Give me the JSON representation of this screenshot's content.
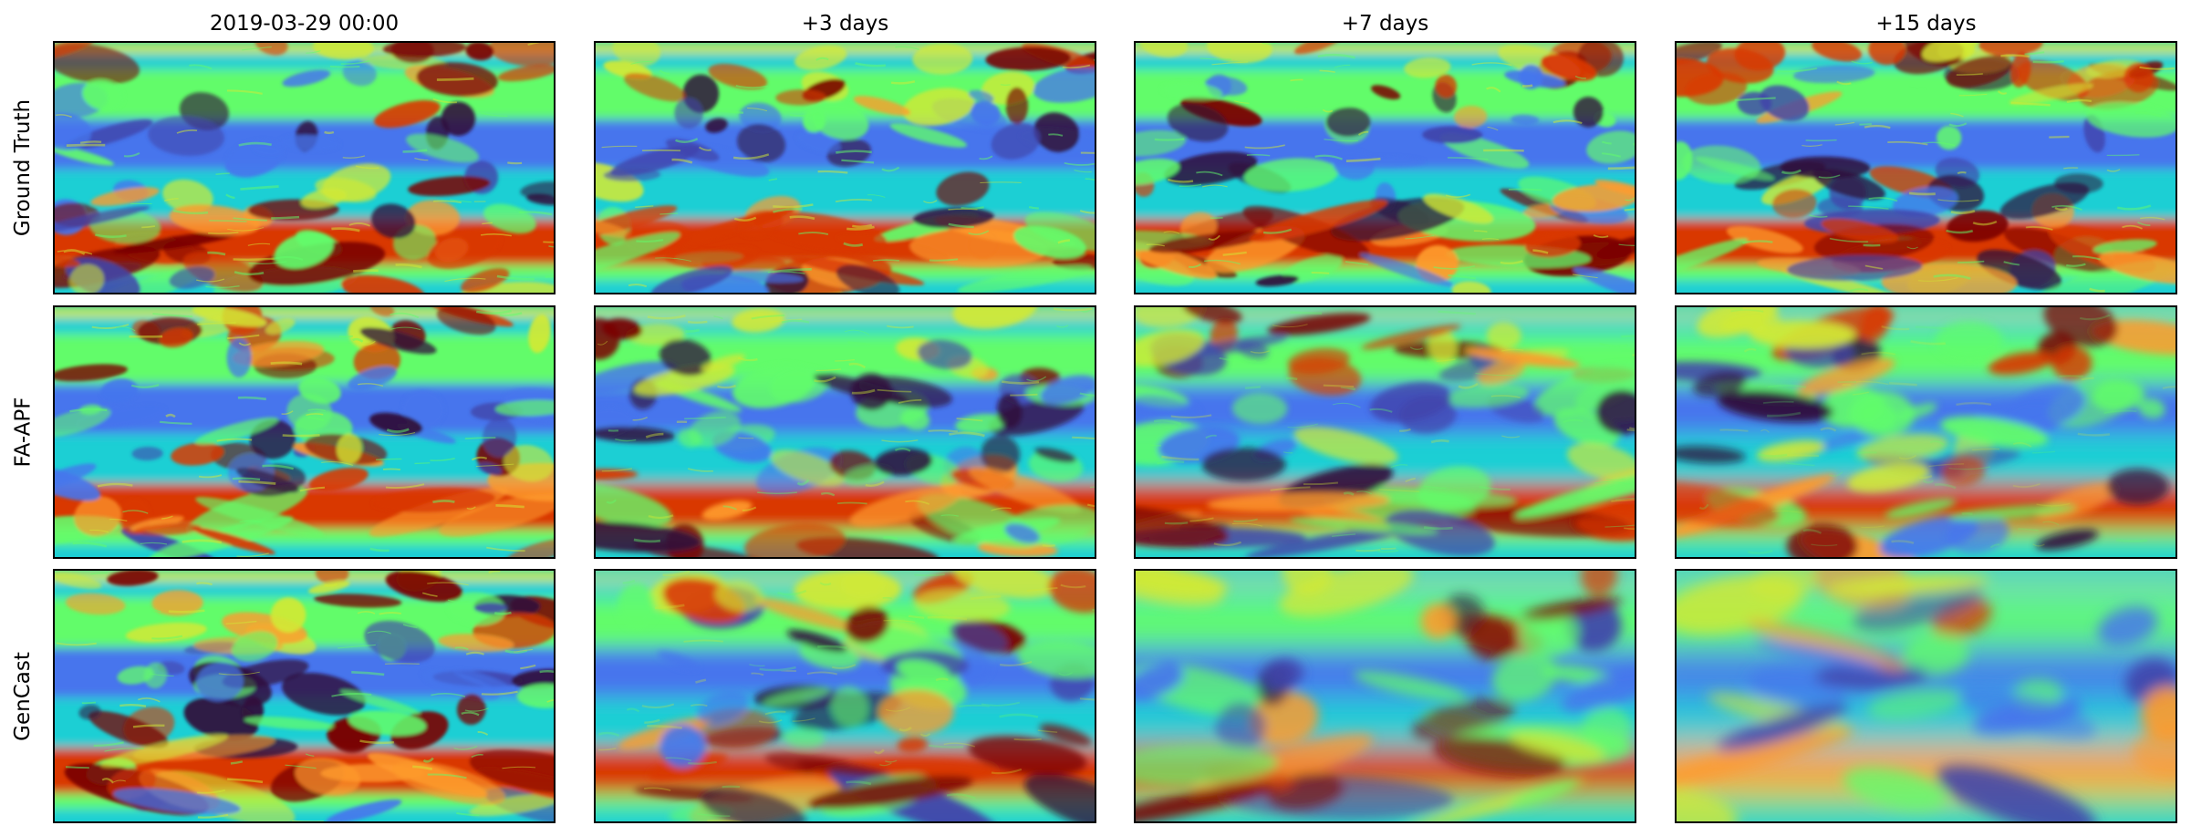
{
  "figure": {
    "columns": [
      "2019-03-29 00:00",
      "+3 days",
      "+7 days",
      "+15 days"
    ],
    "rows": [
      "Ground Truth",
      "FA-APF",
      "GenCast"
    ],
    "colormap": "turbo",
    "colors": {
      "dark": "#30123b",
      "indigo": "#4145ab",
      "blue": "#4675ed",
      "cyan": "#1bcfd4",
      "green": "#62fc6b",
      "yellow": "#d2e935",
      "orange": "#fe9b2d",
      "red": "#d93806",
      "darkred": "#7a0403",
      "frame": "#000000"
    }
  }
}
